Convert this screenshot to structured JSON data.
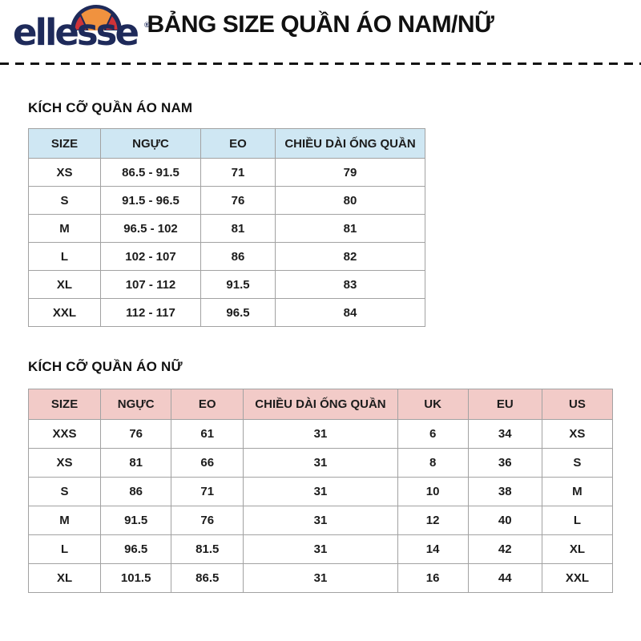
{
  "header": {
    "logo_text": "ellesse",
    "registered_mark": "®",
    "title": "BẢNG SIZE QUẦN ÁO NAM/NỮ"
  },
  "colors": {
    "logo_navy": "#1e2a5a",
    "logo_orange": "#f0923f",
    "logo_red": "#cf3338",
    "men_header_bg": "#cfe7f3",
    "women_header_bg": "#f2cbc8",
    "table_border": "#a2a2a2"
  },
  "men_section": {
    "title": "KÍCH CỠ QUẦN ÁO NAM",
    "header_bg": "#cfe7f3",
    "columns": [
      "SIZE",
      "NGỰC",
      "EO",
      "CHIỀU DÀI ỐNG QUẦN"
    ],
    "rows": [
      [
        "XS",
        "86.5 - 91.5",
        "71",
        "79"
      ],
      [
        "S",
        "91.5 - 96.5",
        "76",
        "80"
      ],
      [
        "M",
        "96.5 - 102",
        "81",
        "81"
      ],
      [
        "L",
        "102 - 107",
        "86",
        "82"
      ],
      [
        "XL",
        "107 - 112",
        "91.5",
        "83"
      ],
      [
        "XXL",
        "112 - 117",
        "96.5",
        "84"
      ]
    ]
  },
  "women_section": {
    "title": "KÍCH CỠ QUẦN ÁO NỮ",
    "header_bg": "#f2cbc8",
    "columns": [
      "SIZE",
      "NGỰC",
      "EO",
      "CHIỀU DÀI ỐNG QUẦN",
      "UK",
      "EU",
      "US"
    ],
    "rows": [
      [
        "XXS",
        "76",
        "61",
        "31",
        "6",
        "34",
        "XS"
      ],
      [
        "XS",
        "81",
        "66",
        "31",
        "8",
        "36",
        "S"
      ],
      [
        "S",
        "86",
        "71",
        "31",
        "10",
        "38",
        "M"
      ],
      [
        "M",
        "91.5",
        "76",
        "31",
        "12",
        "40",
        "L"
      ],
      [
        "L",
        "96.5",
        "81.5",
        "31",
        "14",
        "42",
        "XL"
      ],
      [
        "XL",
        "101.5",
        "86.5",
        "31",
        "16",
        "44",
        "XXL"
      ]
    ]
  }
}
